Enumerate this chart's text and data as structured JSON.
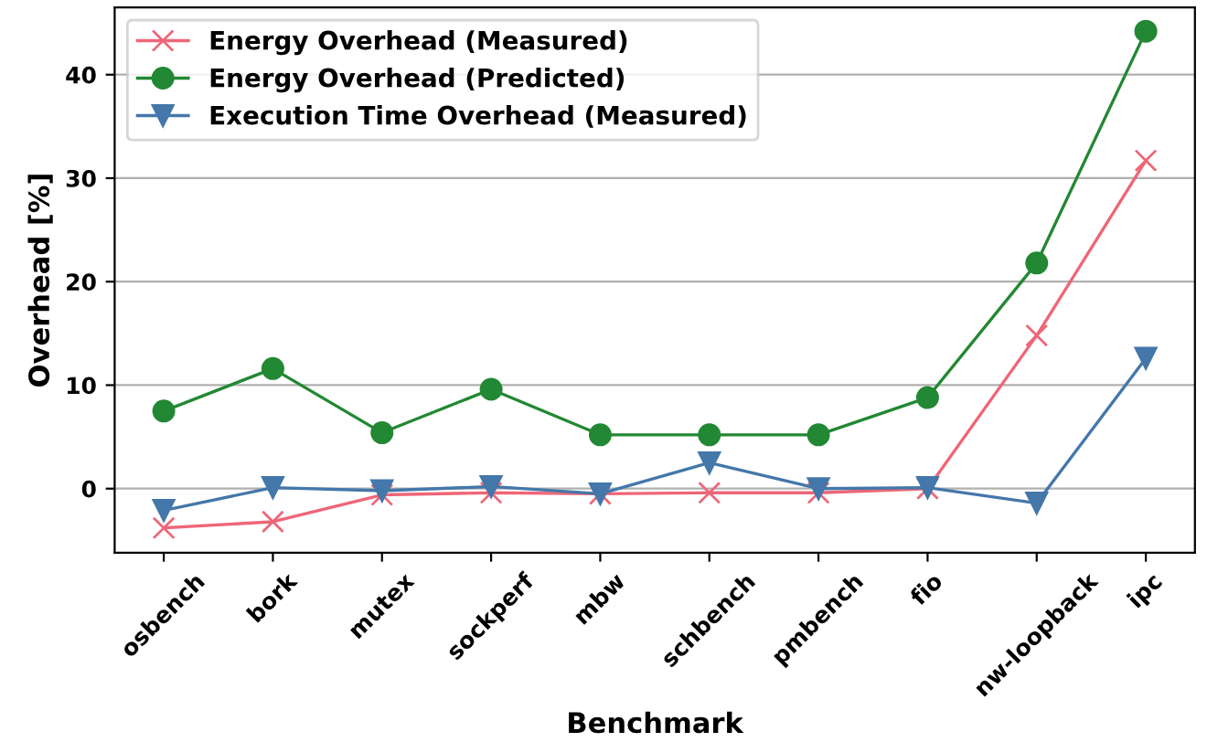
{
  "chart_data": {
    "type": "line",
    "xlabel": "Benchmark",
    "ylabel": "Overhead [%]",
    "categories": [
      "osbench",
      "bork",
      "mutex",
      "sockperf",
      "mbw",
      "schbench",
      "pmbench",
      "fio",
      "nw-loopback",
      "ipc"
    ],
    "series": [
      {
        "name": "Energy Overhead (Measured)",
        "color": "#ee6677",
        "marker": "cross",
        "values": [
          -3.8,
          -3.2,
          -0.6,
          -0.4,
          -0.5,
          -0.4,
          -0.4,
          0,
          14.8,
          31.7
        ]
      },
      {
        "name": "Energy Overhead (Predicted)",
        "color": "#228833",
        "marker": "circle",
        "values": [
          7.5,
          11.6,
          5.4,
          9.6,
          5.2,
          5.2,
          5.2,
          8.8,
          21.8,
          44.2
        ]
      },
      {
        "name": "Execution Time Overhead (Measured)",
        "color": "#4477aa",
        "marker": "triangle",
        "values": [
          -2.1,
          0.1,
          -0.2,
          0.2,
          -0.5,
          2.5,
          0,
          0.1,
          -1.4,
          12.6
        ]
      }
    ],
    "ylim": [
      -6.2,
      46.5
    ],
    "yticks": [
      0,
      10,
      20,
      30,
      40
    ],
    "grid": "y",
    "legend": "top left"
  }
}
